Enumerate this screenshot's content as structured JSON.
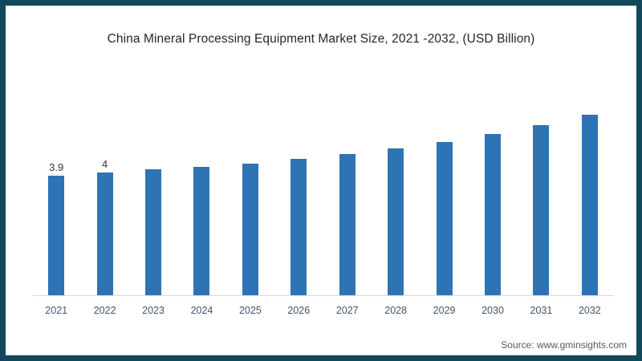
{
  "window": {
    "border_color": "#12485C",
    "background": "#FFFFFF"
  },
  "chart_data": {
    "type": "bar",
    "title": "China Mineral Processing Equipment Market Size, 2021 -2032, (USD Billion)",
    "categories": [
      "2021",
      "2022",
      "2023",
      "2024",
      "2025",
      "2026",
      "2027",
      "2028",
      "2029",
      "2030",
      "2031",
      "2032"
    ],
    "values": [
      3.9,
      4.0,
      4.1,
      4.2,
      4.3,
      4.45,
      4.6,
      4.8,
      5.0,
      5.25,
      5.55,
      5.9
    ],
    "data_labels": [
      "3.9",
      "4",
      "",
      "",
      "",
      "",
      "",
      "",
      "",
      "",
      "",
      ""
    ],
    "xlabel": "",
    "ylabel": "",
    "y_axis_visible": false,
    "gridlines": false,
    "legend_position": "none",
    "ylim": [
      0,
      6.5
    ]
  },
  "source": {
    "label": "Source: www.gminsights.com"
  },
  "colors": {
    "bar": "#2E74B5",
    "border": "#12485C",
    "axis_line": "#D9D9D9",
    "tick_label": "#44546A",
    "data_label": "#333333",
    "title": "#262626",
    "source_text": "#595959"
  }
}
